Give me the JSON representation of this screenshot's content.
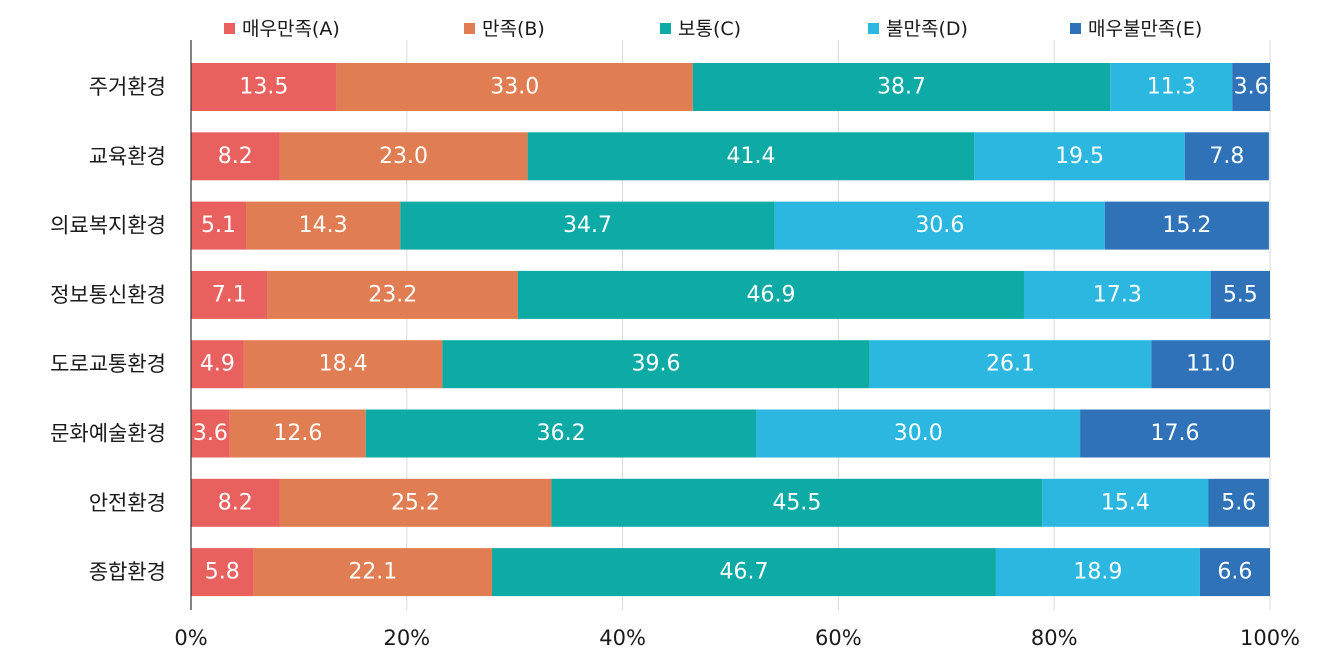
{
  "chart_data": {
    "type": "bar",
    "orientation": "horizontal",
    "stacked": true,
    "title": "",
    "xlabel": "",
    "ylabel": "",
    "xlim": [
      0,
      100
    ],
    "x_ticks": [
      "0%",
      "20%",
      "40%",
      "60%",
      "80%",
      "100%"
    ],
    "grid": "vertical",
    "legend_position": "top",
    "categories": [
      "주거환경",
      "교육환경",
      "의료복지환경",
      "정보통신환경",
      "도로교통환경",
      "문화예술환경",
      "안전환경",
      "종합환경"
    ],
    "series": [
      {
        "name": "매우만족(A)",
        "color": "#e8615f",
        "values": [
          13.5,
          8.2,
          5.1,
          7.1,
          4.9,
          3.6,
          8.2,
          5.8
        ]
      },
      {
        "name": "만족(B)",
        "color": "#e07d52",
        "values": [
          33.0,
          23.0,
          14.3,
          23.2,
          18.4,
          12.6,
          25.2,
          22.1
        ]
      },
      {
        "name": "보통(C)",
        "color": "#0eaba6",
        "values": [
          38.7,
          41.4,
          34.7,
          46.9,
          39.6,
          36.2,
          45.5,
          46.7
        ]
      },
      {
        "name": "불만족(D)",
        "color": "#2bb7df",
        "values": [
          11.3,
          19.5,
          30.6,
          17.3,
          26.1,
          30.0,
          15.4,
          18.9
        ]
      },
      {
        "name": "매우불만족(E)",
        "color": "#2f72b8",
        "values": [
          3.6,
          7.8,
          15.2,
          5.5,
          11.0,
          17.6,
          5.6,
          6.6
        ]
      }
    ]
  }
}
